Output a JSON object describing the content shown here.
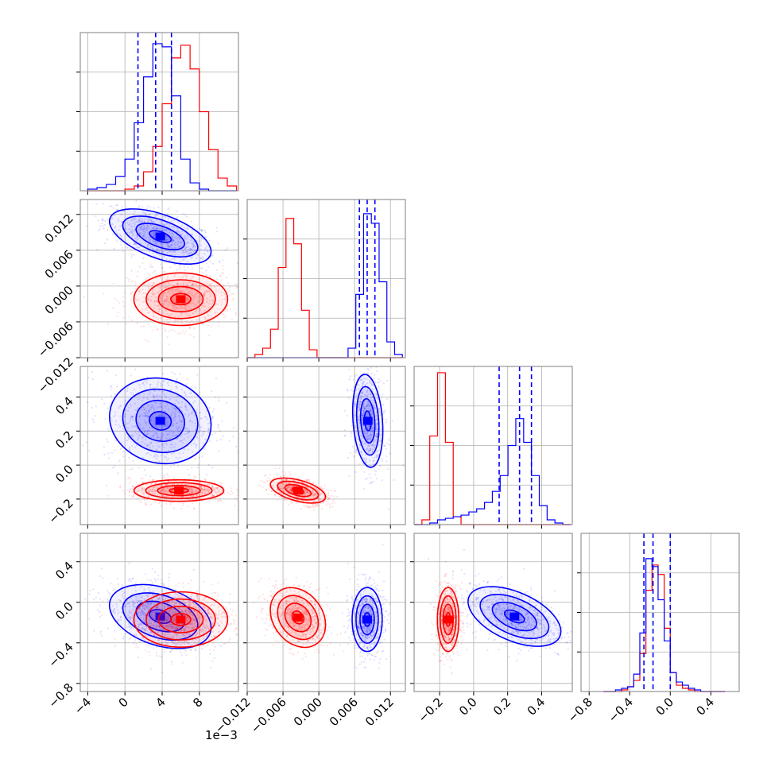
{
  "chart_data": {
    "type": "corner",
    "colors": {
      "series_a": "#0000ff",
      "series_b": "#ff0000"
    },
    "grid": true,
    "x_offset_label": "1e−3",
    "params": [
      {
        "id": "p1",
        "range": [
          -4.8,
          12.2
        ],
        "ticks": [
          -4,
          0,
          4,
          8
        ],
        "tick_labels": [
          "−4",
          "0",
          "4",
          "8"
        ]
      },
      {
        "id": "p2",
        "range": [
          -0.012,
          0.0145
        ],
        "ticks": [
          -0.012,
          -0.006,
          0.0,
          0.006,
          0.012
        ],
        "tick_labels": [
          "−0.012",
          "−0.006",
          "0.000",
          "0.006",
          "0.012"
        ]
      },
      {
        "id": "p3",
        "range": [
          -0.35,
          0.58
        ],
        "ticks": [
          -0.2,
          0.0,
          0.2,
          0.4
        ],
        "tick_labels": [
          "−0.2",
          "0.0",
          "0.2",
          "0.4"
        ]
      },
      {
        "id": "p4",
        "range": [
          -0.88,
          0.68
        ],
        "ticks": [
          -0.8,
          -0.4,
          0.0,
          0.4
        ],
        "tick_labels": [
          "−0.8",
          "−0.4",
          "0.0",
          "0.4"
        ]
      }
    ],
    "x_tick_labels_bottom": [
      [
        "−4",
        "0",
        "4",
        "8"
      ],
      [
        "−0.012",
        "−0.006",
        "0.000",
        "0.006",
        "0.012"
      ],
      [
        "−0.2",
        "0.0",
        "0.2",
        "0.4"
      ],
      [
        "−0.8",
        "−0.4",
        "0.0",
        "0.4"
      ]
    ],
    "y_tick_labels_left": [
      [],
      [
        "−0.012",
        "−0.006",
        "0.000",
        "0.006",
        "0.012"
      ],
      [
        "−0.2",
        "0.0",
        "0.2",
        "0.4"
      ],
      [
        "−0.8",
        "−0.4",
        "0.0",
        "0.4"
      ]
    ],
    "histograms": [
      {
        "param": "p1",
        "bins_edges": [
          -4.0,
          -3.0,
          -2.0,
          -1.0,
          0.0,
          1.0,
          2.0,
          3.0,
          4.0,
          5.0,
          6.0,
          7.0,
          8.0,
          9.0,
          10.0,
          11.0,
          12.0
        ],
        "series_a": [
          0.01,
          0.02,
          0.04,
          0.09,
          0.2,
          0.43,
          0.72,
          0.93,
          0.91,
          0.6,
          0.2,
          0.05,
          0.01,
          0.0,
          0.0,
          0.0
        ],
        "series_b": [
          0.0,
          0.0,
          0.0,
          0.0,
          0.01,
          0.03,
          0.12,
          0.28,
          0.55,
          0.84,
          0.92,
          0.77,
          0.5,
          0.26,
          0.08,
          0.03
        ],
        "quantiles_a": [
          1.4,
          3.3,
          5.0
        ]
      },
      {
        "param": "p2",
        "bins_edges": [
          -0.012,
          -0.0107,
          -0.0094,
          -0.0081,
          -0.0068,
          -0.0055,
          -0.0042,
          -0.0029,
          -0.0016,
          -0.0003,
          0.001,
          0.0023,
          0.0036,
          0.0049,
          0.0062,
          0.0075,
          0.0088,
          0.0101,
          0.0114,
          0.0127,
          0.014
        ],
        "series_a": [
          0.0,
          0.0,
          0.0,
          0.0,
          0.0,
          0.0,
          0.0,
          0.0,
          0.0,
          0.0,
          0.0,
          0.0,
          0.0,
          0.06,
          0.4,
          0.91,
          0.85,
          0.48,
          0.1,
          0.02
        ],
        "series_b": [
          0.0,
          0.02,
          0.06,
          0.18,
          0.57,
          0.88,
          0.72,
          0.3,
          0.05,
          0.0,
          0.0,
          0.0,
          0.0,
          0.0,
          0.0,
          0.0,
          0.0,
          0.0,
          0.0,
          0.0
        ],
        "quantiles_a": [
          0.0068,
          0.0081,
          0.0094
        ]
      },
      {
        "param": "p3",
        "bins_edges": [
          -0.35,
          -0.304,
          -0.258,
          -0.212,
          -0.166,
          -0.12,
          -0.074,
          -0.028,
          0.018,
          0.064,
          0.11,
          0.156,
          0.202,
          0.248,
          0.294,
          0.34,
          0.386,
          0.432,
          0.478,
          0.524,
          0.57
        ],
        "series_a": [
          0.0,
          0.0,
          0.01,
          0.03,
          0.04,
          0.05,
          0.06,
          0.08,
          0.1,
          0.14,
          0.21,
          0.31,
          0.5,
          0.67,
          0.52,
          0.31,
          0.12,
          0.03,
          0.01,
          0.0
        ],
        "series_b": [
          0.0,
          0.03,
          0.56,
          0.96,
          0.52,
          0.05,
          0.0,
          0.0,
          0.0,
          0.0,
          0.0,
          0.0,
          0.0,
          0.0,
          0.0,
          0.0,
          0.0,
          0.0,
          0.0,
          0.0
        ],
        "quantiles_a": [
          0.15,
          0.27,
          0.34
        ]
      },
      {
        "param": "p4",
        "bins_edges": [
          -0.66,
          -0.6,
          -0.54,
          -0.48,
          -0.42,
          -0.36,
          -0.3,
          -0.24,
          -0.18,
          -0.12,
          -0.06,
          0.0,
          0.06,
          0.12,
          0.18,
          0.24,
          0.3,
          0.36,
          0.42,
          0.48,
          0.54
        ],
        "series_a": [
          0.0,
          0.0,
          0.01,
          0.02,
          0.03,
          0.11,
          0.37,
          0.84,
          0.79,
          0.58,
          0.32,
          0.12,
          0.06,
          0.04,
          0.02,
          0.01,
          0.0,
          0.0,
          0.0,
          0.0
        ],
        "series_b": [
          0.0,
          0.0,
          0.0,
          0.01,
          0.03,
          0.07,
          0.24,
          0.64,
          0.8,
          0.74,
          0.4,
          0.12,
          0.04,
          0.02,
          0.01,
          0.0,
          0.0,
          0.0,
          0.0,
          0.0
        ],
        "quantiles_a": [
          -0.26,
          -0.17,
          0.0
        ]
      }
    ],
    "scatter_blobs": [
      {
        "row": 1,
        "col": 0,
        "series": "a",
        "center": [
          3.8,
          0.0083
        ],
        "sd": [
          2.6,
          0.0022
        ],
        "rho": -0.55
      },
      {
        "row": 1,
        "col": 0,
        "series": "b",
        "center": [
          6.0,
          -0.0022
        ],
        "sd": [
          2.4,
          0.0021
        ],
        "rho": 0.0
      },
      {
        "row": 2,
        "col": 0,
        "series": "a",
        "center": [
          3.8,
          0.26
        ],
        "sd": [
          2.6,
          0.12
        ],
        "rho": -0.1
      },
      {
        "row": 2,
        "col": 0,
        "series": "b",
        "center": [
          5.8,
          -0.15
        ],
        "sd": [
          2.3,
          0.03
        ],
        "rho": 0.0
      },
      {
        "row": 2,
        "col": 1,
        "series": "a",
        "center": [
          0.0082,
          0.26
        ],
        "sd": [
          0.0012,
          0.13
        ],
        "rho": -0.2
      },
      {
        "row": 2,
        "col": 1,
        "series": "b",
        "center": [
          -0.0035,
          -0.15
        ],
        "sd": [
          0.0022,
          0.035
        ],
        "rho": -0.5
      },
      {
        "row": 3,
        "col": 0,
        "series": "a",
        "center": [
          3.8,
          -0.14
        ],
        "sd": [
          2.6,
          0.15
        ],
        "rho": -0.35
      },
      {
        "row": 3,
        "col": 0,
        "series": "b",
        "center": [
          6.0,
          -0.17
        ],
        "sd": [
          2.4,
          0.13
        ],
        "rho": 0.0
      },
      {
        "row": 3,
        "col": 1,
        "series": "a",
        "center": [
          0.0081,
          -0.17
        ],
        "sd": [
          0.0012,
          0.15
        ],
        "rho": 0.0
      },
      {
        "row": 3,
        "col": 1,
        "series": "b",
        "center": [
          -0.0035,
          -0.15
        ],
        "sd": [
          0.0022,
          0.14
        ],
        "rho": -0.25
      },
      {
        "row": 3,
        "col": 2,
        "series": "a",
        "center": [
          0.24,
          -0.14
        ],
        "sd": [
          0.13,
          0.14
        ],
        "rho": -0.5
      },
      {
        "row": 3,
        "col": 2,
        "series": "b",
        "center": [
          -0.15,
          -0.17
        ],
        "sd": [
          0.03,
          0.15
        ],
        "rho": 0.0
      }
    ]
  }
}
